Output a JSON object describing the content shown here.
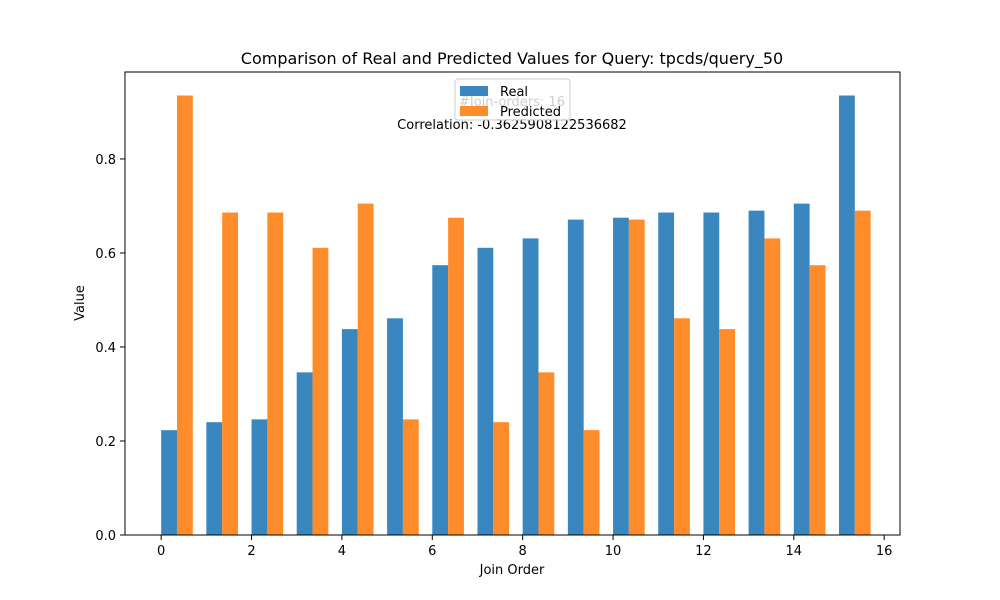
{
  "chart_data": {
    "type": "bar",
    "title": "Comparison of Real and Predicted Values for Query: tpcds/query_50",
    "xlabel": "Join Order",
    "ylabel": "Value",
    "xlim": [
      -0.8,
      16.35
    ],
    "ylim": [
      0,
      0.985
    ],
    "xticks": [
      "0",
      "2",
      "4",
      "6",
      "8",
      "10",
      "12",
      "14",
      "16"
    ],
    "yticks": [
      "0.0",
      "0.2",
      "0.4",
      "0.6",
      "0.8"
    ],
    "categories": [
      0,
      1,
      2,
      3,
      4,
      5,
      6,
      7,
      8,
      9,
      10,
      11,
      12,
      13,
      14,
      15
    ],
    "bar_width": 0.35,
    "grid": false,
    "legend_position": "top-center",
    "series": [
      {
        "name": "Real",
        "color": "#3a87c0",
        "values": [
          0.223,
          0.24,
          0.246,
          0.346,
          0.438,
          0.461,
          0.574,
          0.611,
          0.631,
          0.671,
          0.675,
          0.686,
          0.686,
          0.69,
          0.705,
          0.935
        ]
      },
      {
        "name": "Predicted",
        "color": "#ff8c2a",
        "values": [
          0.935,
          0.686,
          0.686,
          0.611,
          0.705,
          0.246,
          0.675,
          0.24,
          0.346,
          0.223,
          0.671,
          0.461,
          0.438,
          0.631,
          0.574,
          0.69
        ]
      }
    ],
    "annotations": [
      "#Join-orders: 16",
      "Correlation: -0.3625908122536682"
    ]
  }
}
